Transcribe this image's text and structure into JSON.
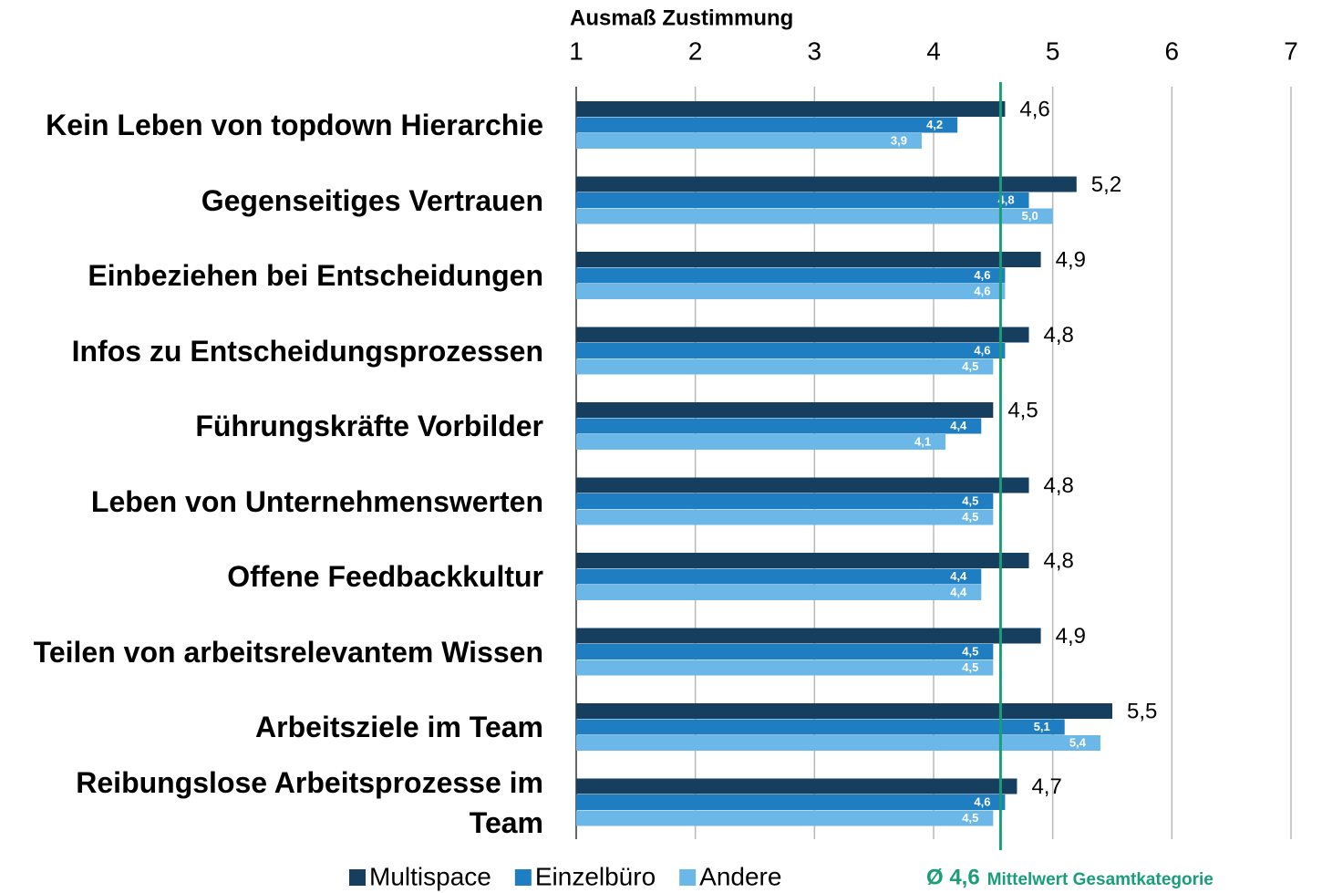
{
  "chart_data": {
    "type": "hbar",
    "xlabel": "Ausmaß Zustimmung",
    "categories": [
      "Kein Leben von topdown Hierarchie",
      "Gegenseitiges Vertrauen",
      "Einbeziehen bei Entscheidungen",
      "Infos zu Entscheidungsprozessen",
      "Führungskräfte Vorbilder",
      "Leben von Unternehmenswerten",
      "Offene Feedbackkultur",
      "Teilen von arbeitsrelevantem Wissen",
      "Arbeitsziele im Team",
      "Reibungslose Arbeitsprozesse im Team"
    ],
    "series": [
      {
        "name": "Multispace",
        "color": "#163f5f",
        "values": [
          4.6,
          5.2,
          4.9,
          4.8,
          4.5,
          4.8,
          4.8,
          4.9,
          5.5,
          4.7
        ],
        "value_labels": [
          "4,6",
          "5,2",
          "4,9",
          "4,8",
          "4,5",
          "4,8",
          "4,8",
          "4,9",
          "5,5",
          "4,7"
        ]
      },
      {
        "name": "Einzelbüro",
        "color": "#1f7ec2",
        "values": [
          4.2,
          4.8,
          4.6,
          4.6,
          4.4,
          4.5,
          4.4,
          4.5,
          5.1,
          4.6
        ],
        "value_labels": [
          "4,2",
          "4,8",
          "4,6",
          "4,6",
          "4,4",
          "4,5",
          "4,4",
          "4,5",
          "5,1",
          "4,6"
        ]
      },
      {
        "name": "Andere",
        "color": "#6bb8e8",
        "values": [
          3.9,
          5.0,
          4.6,
          4.5,
          4.1,
          4.5,
          4.4,
          4.5,
          5.4,
          4.5
        ],
        "value_labels": [
          "3,9",
          "5,0",
          "4,6",
          "4,5",
          "4,1",
          "4,5",
          "4,4",
          "4,5",
          "5,4",
          "4,5"
        ]
      }
    ],
    "xlim": [
      1,
      7
    ],
    "xticks": [
      1,
      2,
      3,
      4,
      5,
      6,
      7
    ],
    "grid": true,
    "mean_line": {
      "value": 4.6,
      "label": "Ø 4,6",
      "text": "Mittelwert Gesamtkategorie",
      "color": "#1a9e7a"
    }
  }
}
